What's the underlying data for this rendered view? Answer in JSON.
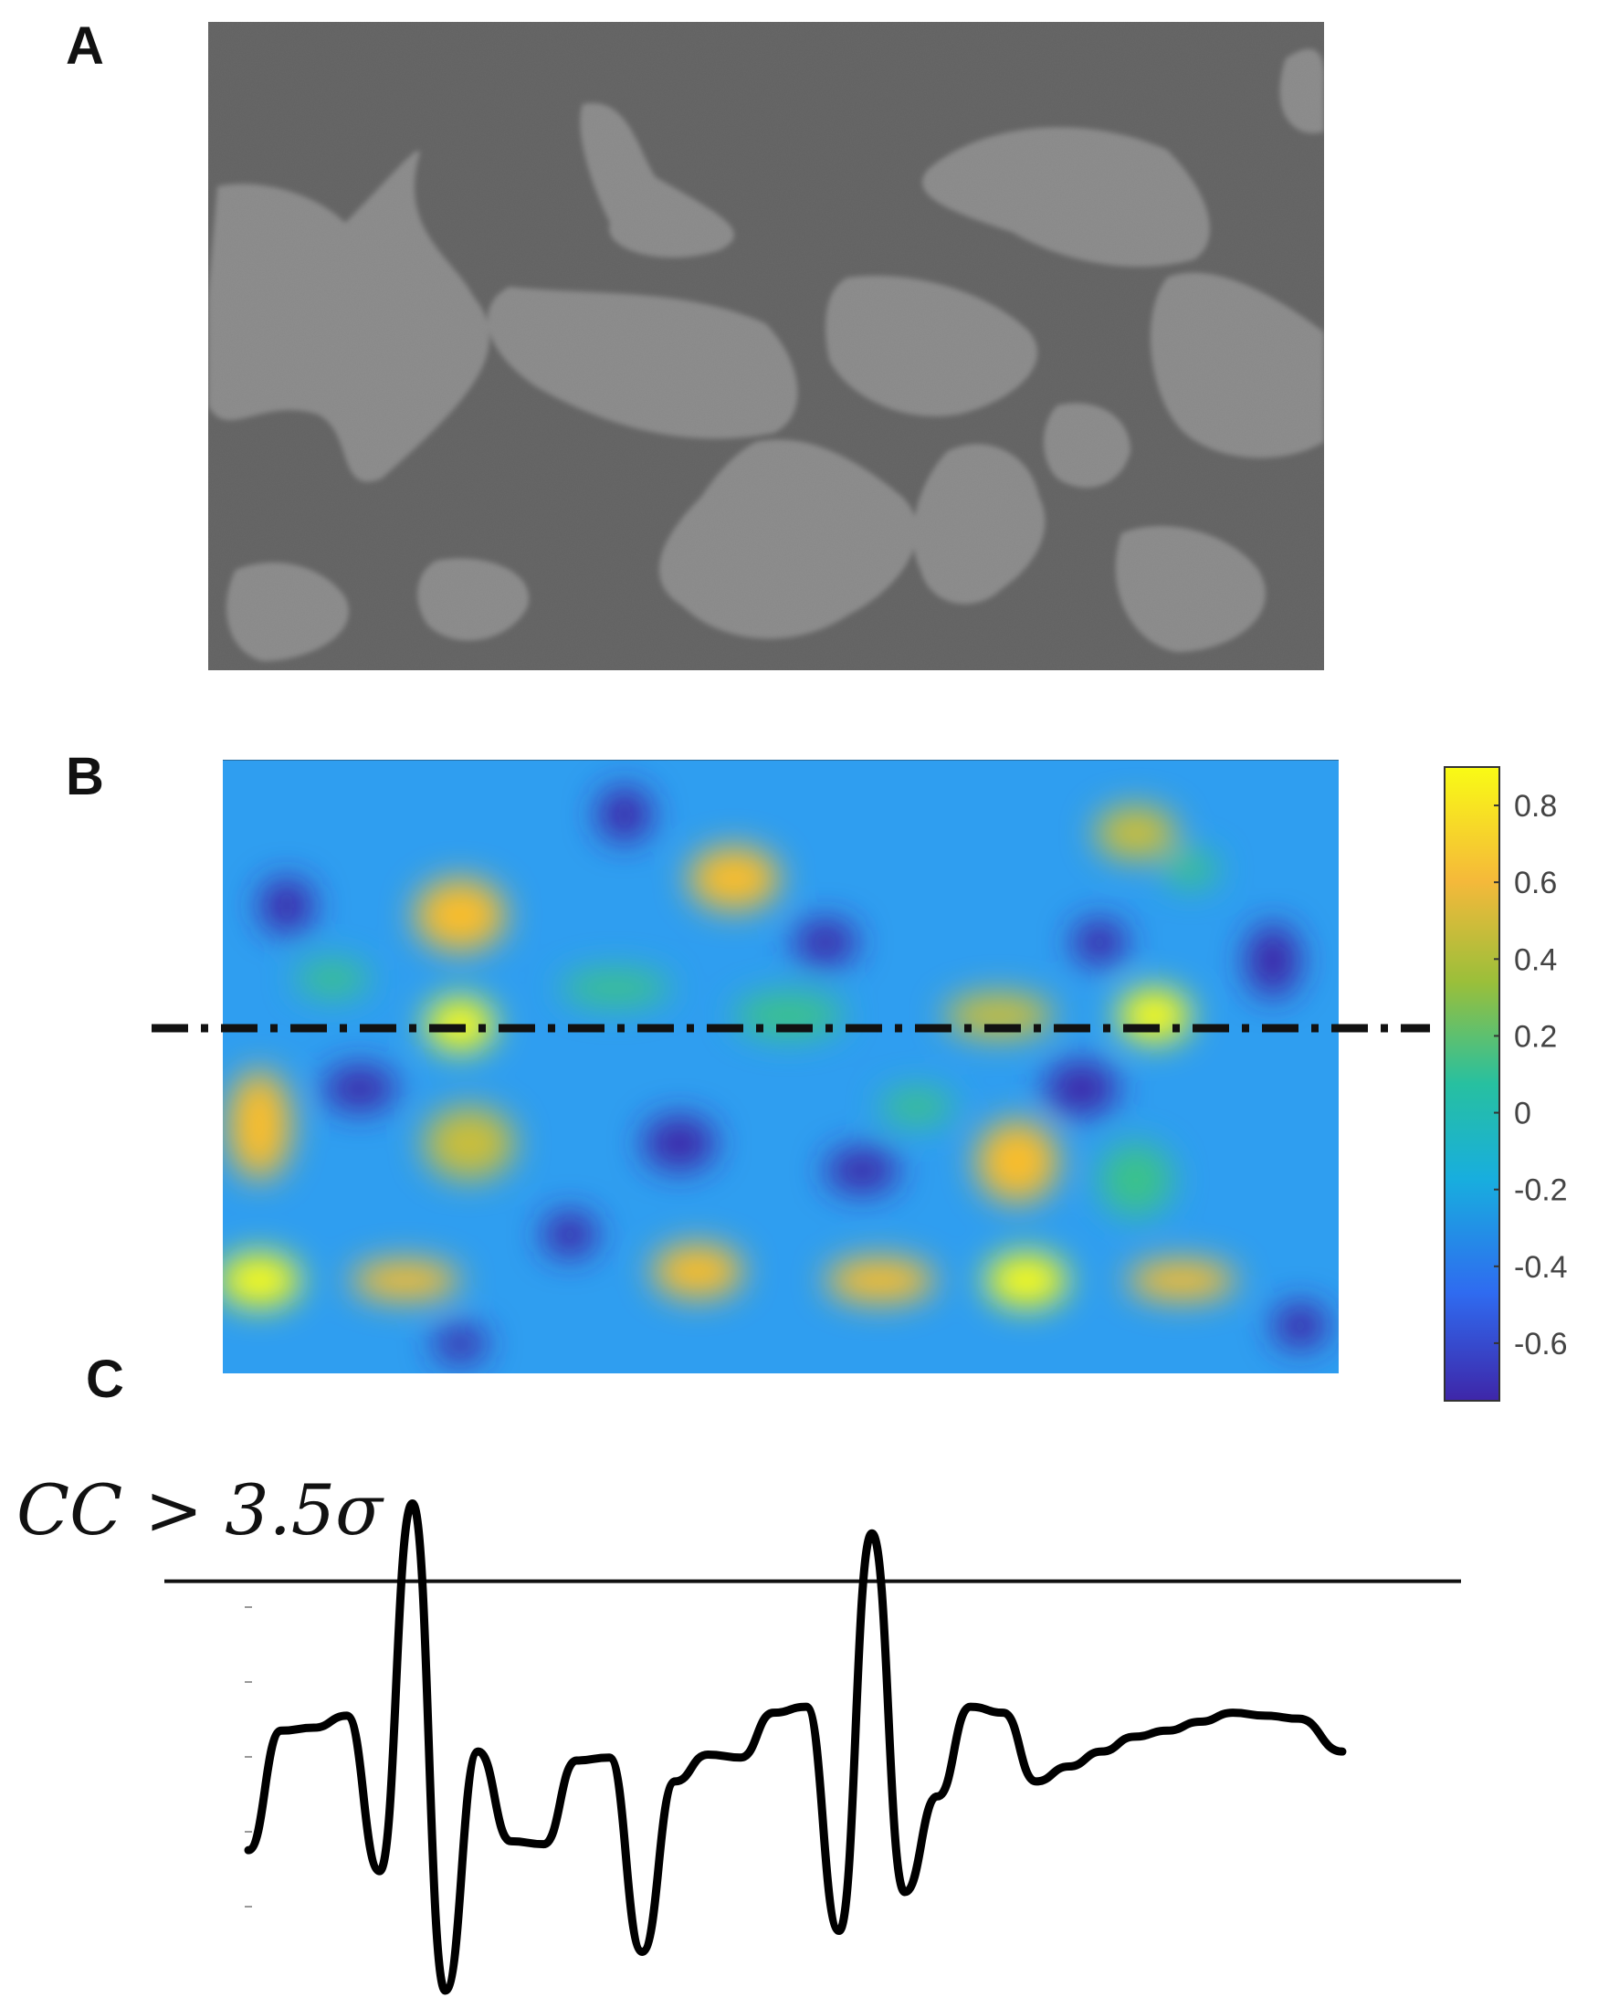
{
  "panels": {
    "a": {
      "label": "A"
    },
    "b": {
      "label": "B"
    },
    "c": {
      "label": "C"
    }
  },
  "colors": {
    "micrograph_dark": "#5c5c5c",
    "micrograph_light": "#8f8f8f",
    "colormap": [
      "#3e26a8",
      "#2f6bf0",
      "#18aede",
      "#3ac28a",
      "#c9be3b",
      "#f9bd2c",
      "#f9fb15"
    ],
    "dash_line": "#111111",
    "trace": "#000000"
  },
  "chart_data": [
    {
      "type": "heatmap",
      "panel": "B",
      "colorbar": {
        "tick_labels": [
          "0.8",
          "0.6",
          "0.4",
          "0.2",
          "0",
          "-0.2",
          "-0.4",
          "-0.6"
        ],
        "ticks": [
          0.8,
          0.6,
          0.4,
          0.2,
          0,
          -0.2,
          -0.4,
          -0.6
        ],
        "range": [
          -0.75,
          0.9
        ],
        "colormap": "parula"
      },
      "cross_section_line": "dash-dot"
    },
    {
      "type": "line",
      "panel": "C",
      "threshold_label": "CC > 3.5σ",
      "threshold": 0.62,
      "y_range": [
        -0.75,
        0.9
      ],
      "x": [
        0,
        0.03,
        0.06,
        0.09,
        0.12,
        0.15,
        0.18,
        0.21,
        0.24,
        0.27,
        0.3,
        0.33,
        0.36,
        0.39,
        0.42,
        0.45,
        0.48,
        0.51,
        0.54,
        0.57,
        0.6,
        0.63,
        0.66,
        0.69,
        0.72,
        0.75,
        0.78,
        0.81,
        0.84,
        0.87,
        0.9,
        0.93,
        0.96,
        1.0
      ],
      "y": [
        -0.28,
        0.12,
        0.13,
        0.17,
        -0.35,
        0.88,
        -0.75,
        0.05,
        -0.25,
        -0.26,
        0.02,
        0.03,
        -0.62,
        -0.05,
        0.04,
        0.03,
        0.18,
        0.2,
        -0.55,
        0.78,
        -0.42,
        -0.1,
        0.2,
        0.18,
        -0.05,
        0.0,
        0.05,
        0.1,
        0.12,
        0.15,
        0.18,
        0.17,
        0.16,
        0.05
      ]
    }
  ]
}
